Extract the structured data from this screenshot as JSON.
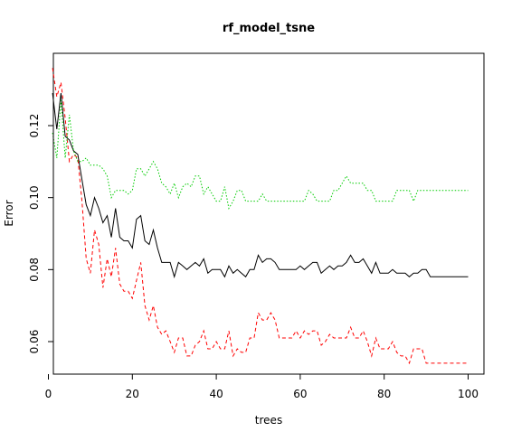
{
  "chart_data": {
    "type": "line",
    "title": "rf_model_tsne",
    "xlabel": "trees",
    "ylabel": "Error",
    "xlim": [
      1,
      100
    ],
    "ylim": [
      0.052,
      0.138
    ],
    "x_ticks": [
      0,
      20,
      40,
      60,
      80,
      100
    ],
    "y_ticks": [
      0.06,
      0.08,
      0.1,
      0.12
    ],
    "x_tick_labels": [
      "0",
      "20",
      "40",
      "60",
      "80",
      "100"
    ],
    "y_tick_labels": [
      "0.06",
      "0.08",
      "0.10",
      "0.12"
    ],
    "grid": false,
    "legend": "none",
    "series": [
      {
        "color": "#000000",
        "dash": "solid",
        "values": [
          0.129,
          0.119,
          0.129,
          0.117,
          0.116,
          0.113,
          0.112,
          0.105,
          0.098,
          0.095,
          0.1,
          0.097,
          0.093,
          0.095,
          0.089,
          0.097,
          0.089,
          0.088,
          0.088,
          0.086,
          0.094,
          0.095,
          0.088,
          0.087,
          0.091,
          0.086,
          0.082,
          0.082,
          0.082,
          0.078,
          0.082,
          0.081,
          0.08,
          0.081,
          0.082,
          0.081,
          0.083,
          0.079,
          0.08,
          0.08,
          0.08,
          0.078,
          0.081,
          0.079,
          0.08,
          0.079,
          0.078,
          0.08,
          0.08,
          0.084,
          0.082,
          0.083,
          0.083,
          0.082,
          0.08,
          0.08,
          0.08,
          0.08,
          0.08,
          0.081,
          0.08,
          0.081,
          0.082,
          0.082,
          0.079,
          0.08,
          0.081,
          0.08,
          0.081,
          0.081,
          0.082,
          0.084,
          0.082,
          0.082,
          0.083,
          0.081,
          0.079,
          0.082,
          0.079,
          0.079,
          0.079,
          0.08,
          0.079,
          0.079,
          0.079,
          0.078,
          0.079,
          0.079,
          0.08,
          0.08,
          0.078,
          0.078,
          0.078,
          0.078,
          0.078,
          0.078,
          0.078,
          0.078,
          0.078,
          0.078
        ]
      },
      {
        "color": "#ff0000",
        "dash": "dashed",
        "values": [
          0.136,
          0.128,
          0.132,
          0.122,
          0.11,
          0.112,
          0.111,
          0.099,
          0.083,
          0.079,
          0.091,
          0.087,
          0.075,
          0.083,
          0.078,
          0.086,
          0.076,
          0.074,
          0.074,
          0.072,
          0.077,
          0.082,
          0.07,
          0.066,
          0.07,
          0.064,
          0.062,
          0.063,
          0.06,
          0.057,
          0.061,
          0.061,
          0.056,
          0.056,
          0.059,
          0.06,
          0.063,
          0.058,
          0.058,
          0.06,
          0.058,
          0.058,
          0.063,
          0.056,
          0.058,
          0.057,
          0.057,
          0.061,
          0.061,
          0.068,
          0.066,
          0.066,
          0.068,
          0.066,
          0.061,
          0.061,
          0.061,
          0.061,
          0.063,
          0.061,
          0.063,
          0.062,
          0.063,
          0.063,
          0.059,
          0.06,
          0.062,
          0.061,
          0.061,
          0.061,
          0.061,
          0.064,
          0.061,
          0.061,
          0.063,
          0.06,
          0.056,
          0.061,
          0.058,
          0.058,
          0.058,
          0.06,
          0.057,
          0.056,
          0.056,
          0.054,
          0.058,
          0.058,
          0.058,
          0.054,
          0.054,
          0.054,
          0.054,
          0.054,
          0.054,
          0.054,
          0.054,
          0.054,
          0.054,
          0.054
        ]
      },
      {
        "color": "#00cc00",
        "dash": "dotted",
        "values": [
          0.118,
          0.111,
          0.127,
          0.111,
          0.123,
          0.113,
          0.11,
          0.11,
          0.111,
          0.109,
          0.109,
          0.109,
          0.108,
          0.106,
          0.1,
          0.102,
          0.102,
          0.102,
          0.101,
          0.102,
          0.108,
          0.108,
          0.106,
          0.108,
          0.11,
          0.108,
          0.104,
          0.103,
          0.101,
          0.104,
          0.1,
          0.103,
          0.104,
          0.103,
          0.106,
          0.106,
          0.101,
          0.103,
          0.101,
          0.099,
          0.099,
          0.103,
          0.097,
          0.099,
          0.102,
          0.102,
          0.099,
          0.099,
          0.099,
          0.099,
          0.101,
          0.099,
          0.099,
          0.099,
          0.099,
          0.099,
          0.099,
          0.099,
          0.099,
          0.099,
          0.099,
          0.102,
          0.101,
          0.099,
          0.099,
          0.099,
          0.099,
          0.102,
          0.102,
          0.104,
          0.106,
          0.104,
          0.104,
          0.104,
          0.104,
          0.102,
          0.102,
          0.099,
          0.099,
          0.099,
          0.099,
          0.099,
          0.102,
          0.102,
          0.102,
          0.102,
          0.099,
          0.102,
          0.102,
          0.102,
          0.102,
          0.102,
          0.102,
          0.102,
          0.102,
          0.102,
          0.102,
          0.102,
          0.102,
          0.102
        ]
      }
    ]
  }
}
